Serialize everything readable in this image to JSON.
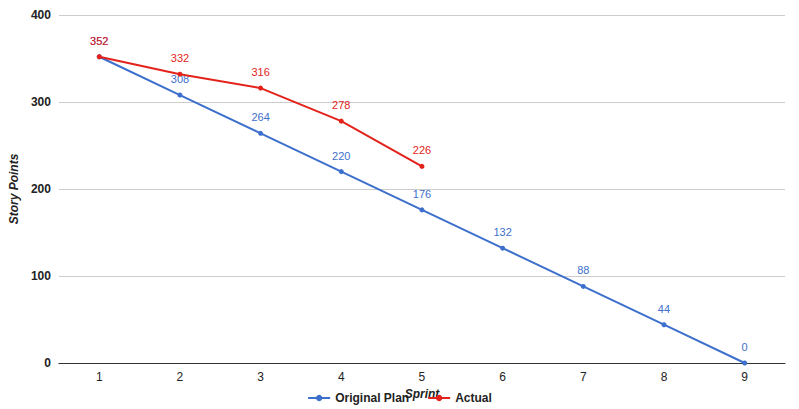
{
  "chart_data": {
    "type": "line",
    "x_label": "Sprint",
    "y_label": "Story Points",
    "categories": [
      "1",
      "2",
      "3",
      "4",
      "5",
      "6",
      "7",
      "8",
      "9"
    ],
    "series": [
      {
        "name": "Original Plan",
        "color": "#3d6fcc",
        "values": [
          352,
          308,
          264,
          220,
          176,
          132,
          88,
          44,
          0
        ]
      },
      {
        "name": "Actual",
        "color": "#e3231b",
        "values": [
          352,
          332,
          316,
          278,
          226,
          null,
          null,
          null,
          null
        ]
      }
    ],
    "ylim": [
      0,
      400
    ],
    "yticks": [
      0,
      100,
      200,
      300,
      400
    ],
    "grid": true,
    "legend": "bottom",
    "data_labels": true,
    "marker": "circle",
    "line_style": "solid"
  }
}
